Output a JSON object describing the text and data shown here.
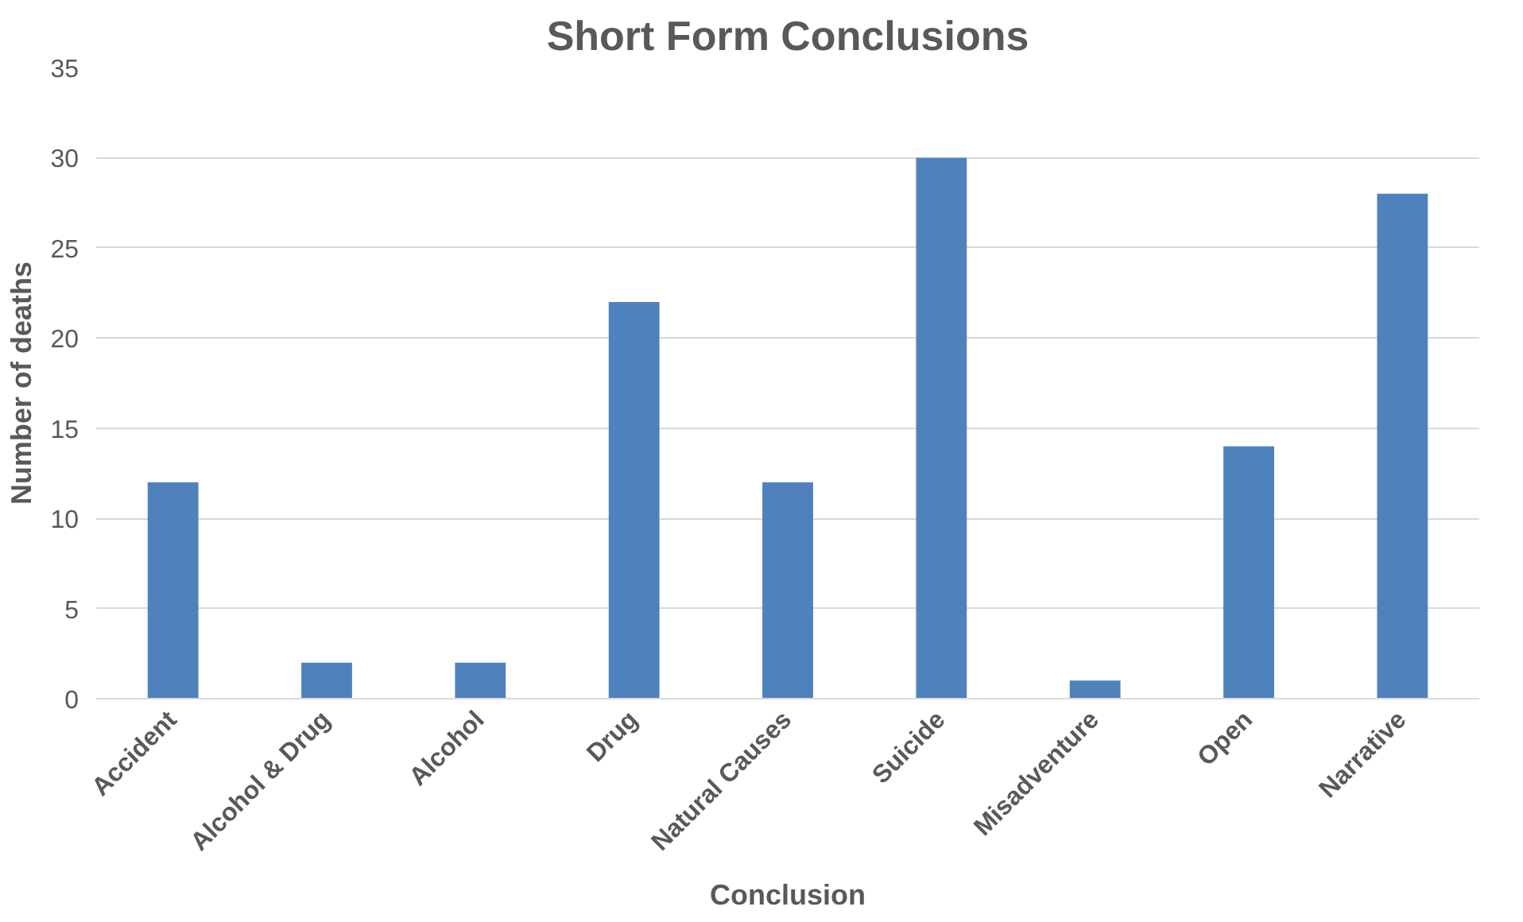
{
  "chart_data": {
    "type": "bar",
    "title": "Short Form Conclusions",
    "xlabel": "Conclusion",
    "ylabel": "Number of deaths",
    "categories": [
      "Accident",
      "Alcohol & Drug",
      "Alcohol",
      "Drug",
      "Natural Causes",
      "Suicide",
      "Misadventure",
      "Open",
      "Narrative"
    ],
    "values": [
      12,
      2,
      2,
      22,
      12,
      30,
      1,
      14,
      28
    ],
    "color": "#4f81bd",
    "ylim": [
      0,
      35
    ],
    "yticks": [
      0,
      5,
      10,
      15,
      20,
      25,
      30,
      35
    ],
    "grid": "y"
  }
}
